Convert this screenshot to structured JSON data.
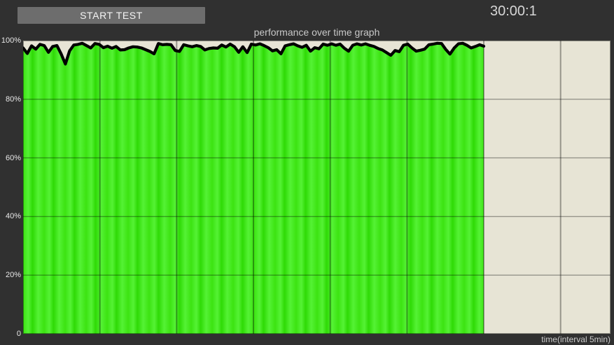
{
  "app": {
    "start_button_label": "START TEST",
    "timer": "30:00:1"
  },
  "colors": {
    "app_bg": "#303030",
    "plot_bg": "#e7e4d5",
    "green_base": "#3ce312",
    "green_stripe_light": "#55f235",
    "green_stripe_dark": "#2eda05",
    "trace": "#000000",
    "grid": "rgba(0,0,0,0.35)",
    "plot_border": "rgba(0,0,0,0.4)",
    "button_bg": "#6d6d6d",
    "text_light": "#d6d6d6"
  },
  "chart_data": {
    "type": "area",
    "title": "performance over time graph",
    "xlabel": "time(interval 5min)",
    "ylim": [
      0,
      100
    ],
    "y_ticks": [
      100,
      80,
      60,
      40,
      20,
      0
    ],
    "y_tick_labels": [
      "100%",
      "80%",
      "60%",
      "40%",
      "20%",
      "0"
    ],
    "x_axis": {
      "interval_minutes": 5,
      "total_intervals_visible": 7.65,
      "recorded_intervals": 6,
      "gridline_count": 7
    },
    "grid": "on",
    "series": [
      {
        "name": "performance_percent",
        "values": [
          97.5,
          95.6,
          98.2,
          97.1,
          98.7,
          98.3,
          96.0,
          98.0,
          98.3,
          95.5,
          92.0,
          96.5,
          98.5,
          98.7,
          99.1,
          98.3,
          97.5,
          99.0,
          98.7,
          97.6,
          98.1,
          97.4,
          98.0,
          96.8,
          96.9,
          97.5,
          97.9,
          97.8,
          97.5,
          96.9,
          96.3,
          95.5,
          99.0,
          98.6,
          98.7,
          98.6,
          96.6,
          96.3,
          98.6,
          98.2,
          97.9,
          98.3,
          98.0,
          96.8,
          97.3,
          97.5,
          97.4,
          98.5,
          97.8,
          98.8,
          97.9,
          96.0,
          97.9,
          95.9,
          98.8,
          98.5,
          98.9,
          98.3,
          97.6,
          96.5,
          96.9,
          95.5,
          98.2,
          98.6,
          98.9,
          98.2,
          97.7,
          98.4,
          96.4,
          97.6,
          97.2,
          98.8,
          98.4,
          98.9,
          98.4,
          98.8,
          97.4,
          96.4,
          98.4,
          98.9,
          98.5,
          98.9,
          98.4,
          98.0,
          97.3,
          96.8,
          95.9,
          95.0,
          96.6,
          96.2,
          98.4,
          98.8,
          97.5,
          96.4,
          96.7,
          97.1,
          98.6,
          98.8,
          99.1,
          99.0,
          97.0,
          95.4,
          97.5,
          98.9,
          99.1,
          98.4,
          97.5,
          98.0,
          98.6,
          98.1
        ]
      }
    ]
  }
}
